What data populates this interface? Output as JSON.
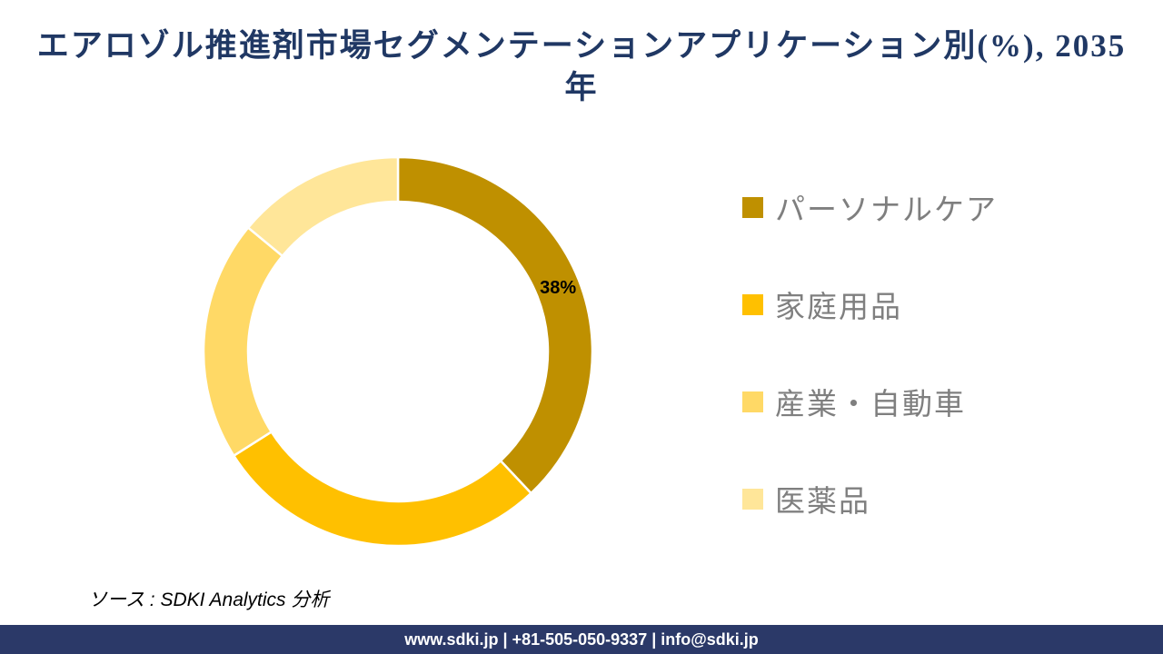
{
  "title": {
    "lines": [
      "エアロゾル推進剤市場セグメンテーションアプリケーション別(%), 2035",
      "年"
    ],
    "full_text": "エアロゾル推進剤市場セグメンテーションアプリケーション別(%), 2035年",
    "color": "#203864"
  },
  "chart_data": {
    "type": "pie",
    "style": "donut",
    "title": "エアロゾル推進剤市場セグメンテーションアプリケーション別(%), 2035年",
    "categories": [
      "パーソナルケア",
      "家庭用品",
      "産業・自動車",
      "医薬品"
    ],
    "values": [
      38,
      28,
      20,
      14
    ],
    "unit": "%",
    "colors": [
      "#BF9000",
      "#FFC000",
      "#FFD966",
      "#FFE699"
    ],
    "data_labels": [
      "38%",
      "",
      "",
      ""
    ],
    "start_angle_deg": 0,
    "direction": "clockwise",
    "inner_radius_ratio": 0.77,
    "segment_divider_color": "#FFFFFF",
    "legend_position": "right"
  },
  "source": {
    "text": "ソース : SDKI Analytics 分析"
  },
  "footer": {
    "text": "www.sdki.jp | +81-505-050-9337 | info@sdki.jp",
    "background": "#2B3968"
  }
}
